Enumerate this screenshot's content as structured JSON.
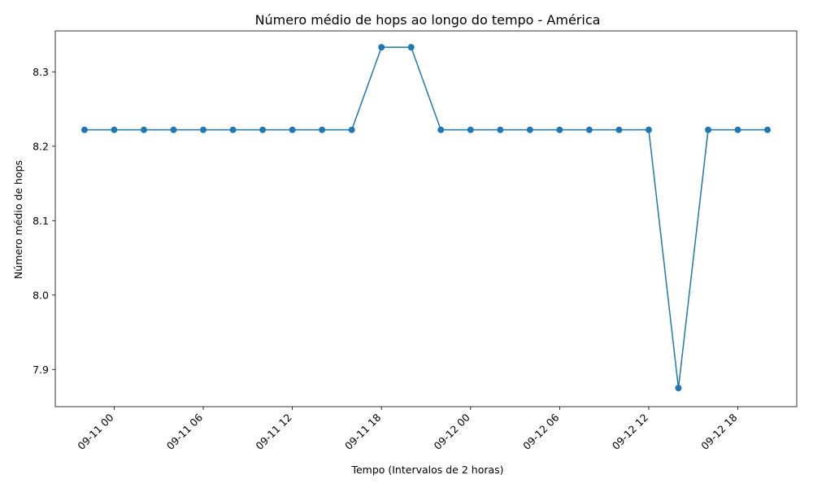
{
  "chart_data": {
    "type": "line",
    "title": "Número médio de hops ao longo do tempo - América",
    "xlabel": "Tempo (Intervalos de 2 horas)",
    "ylabel": "Número médio de hops",
    "x": [
      "2023-09-10T22:00",
      "2023-09-11T00:00",
      "2023-09-11T02:00",
      "2023-09-11T04:00",
      "2023-09-11T06:00",
      "2023-09-11T08:00",
      "2023-09-11T10:00",
      "2023-09-11T12:00",
      "2023-09-11T14:00",
      "2023-09-11T16:00",
      "2023-09-11T18:00",
      "2023-09-11T20:00",
      "2023-09-11T22:00",
      "2023-09-12T00:00",
      "2023-09-12T02:00",
      "2023-09-12T04:00",
      "2023-09-12T06:00",
      "2023-09-12T08:00",
      "2023-09-12T10:00",
      "2023-09-12T12:00",
      "2023-09-12T14:00",
      "2023-09-12T16:00",
      "2023-09-12T18:00",
      "2023-09-12T20:00"
    ],
    "series": [
      {
        "values": [
          8.222,
          8.222,
          8.222,
          8.222,
          8.222,
          8.222,
          8.222,
          8.222,
          8.222,
          8.222,
          8.333,
          8.333,
          8.222,
          8.222,
          8.222,
          8.222,
          8.222,
          8.222,
          8.222,
          8.222,
          7.875,
          8.222,
          8.222,
          8.222
        ],
        "color": "#1f77b4"
      }
    ],
    "xlim": [
      "2023-09-10T20:02",
      "2023-09-12T21:58"
    ],
    "ylim": [
      7.85,
      8.355
    ],
    "xticks": [
      "2023-09-11T00:00",
      "2023-09-11T06:00",
      "2023-09-11T12:00",
      "2023-09-11T18:00",
      "2023-09-12T00:00",
      "2023-09-12T06:00",
      "2023-09-12T12:00",
      "2023-09-12T18:00"
    ],
    "xtick_labels": [
      "09-11 00",
      "09-11 06",
      "09-11 12",
      "09-11 18",
      "09-12 00",
      "09-12 06",
      "09-12 12",
      "09-12 18"
    ],
    "yticks": [
      7.9,
      8.0,
      8.1,
      8.2,
      8.3
    ],
    "ytick_labels": [
      "7.9",
      "8.0",
      "8.1",
      "8.2",
      "8.3"
    ],
    "grid": false,
    "marker": "circle"
  }
}
